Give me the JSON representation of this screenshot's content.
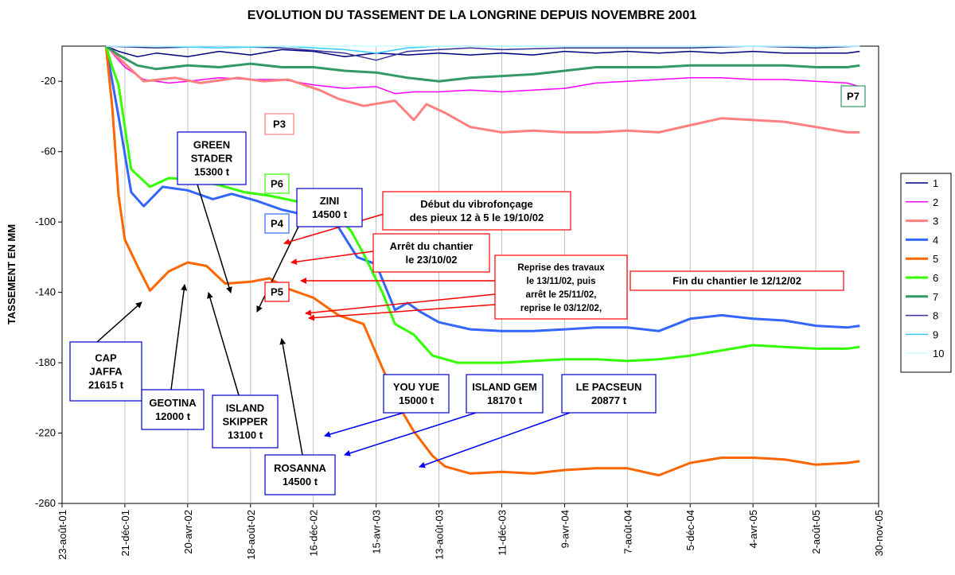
{
  "chart_data": {
    "type": "line",
    "title": "EVOLUTION DU TASSEMENT DE LA LONGRINE DEPUIS NOVEMBRE 2001",
    "ylabel": "TASSEMENT EN MM",
    "xlabel": "",
    "ylim": [
      -260,
      0
    ],
    "yticks": [
      -20,
      -60,
      -100,
      -140,
      -180,
      -220,
      -260
    ],
    "xticks": [
      "23-août-01",
      "21-déc-01",
      "20-avr-02",
      "18-août-02",
      "16-déc-02",
      "15-avr-03",
      "13-août-03",
      "11-déc-03",
      "9-avr-04",
      "7-août-04",
      "5-déc-04",
      "4-avr-05",
      "2-août-05",
      "30-nov-05"
    ],
    "grid": "vertical",
    "legend_position": "right",
    "series": [
      {
        "name": "1",
        "color": "#000080",
        "points": [
          [
            0.7,
            0
          ],
          [
            0.9,
            -3
          ],
          [
            1.2,
            -6
          ],
          [
            1.5,
            -4
          ],
          [
            2,
            -6
          ],
          [
            2.5,
            -3
          ],
          [
            3,
            -5
          ],
          [
            3.5,
            -2
          ],
          [
            4,
            -3
          ],
          [
            4.5,
            -6
          ],
          [
            5,
            -4
          ],
          [
            5.5,
            -5
          ],
          [
            6,
            -4
          ],
          [
            6.5,
            -5
          ],
          [
            7,
            -4
          ],
          [
            7.5,
            -5
          ],
          [
            8,
            -3
          ],
          [
            8.5,
            -4
          ],
          [
            9,
            -3
          ],
          [
            9.5,
            -4
          ],
          [
            10,
            -3
          ],
          [
            10.5,
            -4
          ],
          [
            11,
            -3
          ],
          [
            11.5,
            -4
          ],
          [
            12,
            -4
          ],
          [
            12.5,
            -4
          ],
          [
            12.7,
            -3
          ]
        ]
      },
      {
        "name": "2",
        "color": "#ff00ff",
        "points": [
          [
            0.7,
            0
          ],
          [
            1,
            -12
          ],
          [
            1.3,
            -19
          ],
          [
            1.7,
            -21
          ],
          [
            2,
            -20
          ],
          [
            2.5,
            -18
          ],
          [
            3,
            -19
          ],
          [
            3.5,
            -19
          ],
          [
            4,
            -22
          ],
          [
            4.5,
            -24
          ],
          [
            5,
            -23
          ],
          [
            5.3,
            -27
          ],
          [
            5.6,
            -26
          ],
          [
            6,
            -26
          ],
          [
            6.5,
            -25
          ],
          [
            7,
            -26
          ],
          [
            7.5,
            -25
          ],
          [
            8,
            -24
          ],
          [
            8.5,
            -21
          ],
          [
            9,
            -20
          ],
          [
            9.5,
            -19
          ],
          [
            10,
            -18
          ],
          [
            10.5,
            -18
          ],
          [
            11,
            -19
          ],
          [
            11.5,
            -19
          ],
          [
            12,
            -20
          ],
          [
            12.5,
            -21
          ],
          [
            12.7,
            -23
          ]
        ]
      },
      {
        "name": "3",
        "color": "#ff8080",
        "points": [
          [
            0.7,
            0
          ],
          [
            1,
            -10
          ],
          [
            1.3,
            -20
          ],
          [
            1.8,
            -18
          ],
          [
            2.2,
            -21
          ],
          [
            2.8,
            -18
          ],
          [
            3.2,
            -20
          ],
          [
            3.6,
            -19
          ],
          [
            4.1,
            -25
          ],
          [
            4.4,
            -30
          ],
          [
            4.8,
            -34
          ],
          [
            5.3,
            -31
          ],
          [
            5.6,
            -42
          ],
          [
            5.8,
            -33
          ],
          [
            6.1,
            -38
          ],
          [
            6.5,
            -46
          ],
          [
            7,
            -49
          ],
          [
            7.5,
            -48
          ],
          [
            8,
            -49
          ],
          [
            8.5,
            -49
          ],
          [
            9,
            -48
          ],
          [
            9.5,
            -49
          ],
          [
            10,
            -45
          ],
          [
            10.5,
            -41
          ],
          [
            11,
            -42
          ],
          [
            11.5,
            -43
          ],
          [
            12,
            -46
          ],
          [
            12.5,
            -49
          ],
          [
            12.7,
            -49
          ]
        ]
      },
      {
        "name": "4",
        "color": "#3366ff",
        "points": [
          [
            0.7,
            0
          ],
          [
            0.9,
            -40
          ],
          [
            1.1,
            -83
          ],
          [
            1.3,
            -91
          ],
          [
            1.6,
            -80
          ],
          [
            2,
            -82
          ],
          [
            2.4,
            -87
          ],
          [
            2.7,
            -84
          ],
          [
            3.1,
            -88
          ],
          [
            3.5,
            -93
          ],
          [
            4,
            -97
          ],
          [
            4.4,
            -103
          ],
          [
            4.7,
            -120
          ],
          [
            5,
            -124
          ],
          [
            5.3,
            -150
          ],
          [
            5.5,
            -146
          ],
          [
            5.7,
            -151
          ],
          [
            6,
            -157
          ],
          [
            6.5,
            -161
          ],
          [
            7,
            -162
          ],
          [
            7.5,
            -162
          ],
          [
            8,
            -161
          ],
          [
            8.5,
            -160
          ],
          [
            9,
            -160
          ],
          [
            9.5,
            -162
          ],
          [
            10,
            -155
          ],
          [
            10.5,
            -153
          ],
          [
            11,
            -155
          ],
          [
            11.5,
            -156
          ],
          [
            12,
            -159
          ],
          [
            12.5,
            -160
          ],
          [
            12.7,
            -159
          ]
        ]
      },
      {
        "name": "5",
        "color": "#ff6600",
        "points": [
          [
            0.7,
            0
          ],
          [
            0.8,
            -35
          ],
          [
            0.9,
            -85
          ],
          [
            1,
            -110
          ],
          [
            1.2,
            -125
          ],
          [
            1.4,
            -139
          ],
          [
            1.7,
            -128
          ],
          [
            2,
            -123
          ],
          [
            2.3,
            -125
          ],
          [
            2.6,
            -135
          ],
          [
            3,
            -134
          ],
          [
            3.3,
            -132
          ],
          [
            3.6,
            -138
          ],
          [
            4,
            -143
          ],
          [
            4.4,
            -153
          ],
          [
            4.8,
            -158
          ],
          [
            5.1,
            -183
          ],
          [
            5.4,
            -207
          ],
          [
            5.6,
            -219
          ],
          [
            5.9,
            -233
          ],
          [
            6.1,
            -239
          ],
          [
            6.5,
            -243
          ],
          [
            7,
            -242
          ],
          [
            7.5,
            -243
          ],
          [
            8,
            -241
          ],
          [
            8.5,
            -240
          ],
          [
            9,
            -240
          ],
          [
            9.5,
            -244
          ],
          [
            10,
            -237
          ],
          [
            10.5,
            -234
          ],
          [
            11,
            -234
          ],
          [
            11.5,
            -235
          ],
          [
            12,
            -238
          ],
          [
            12.5,
            -237
          ],
          [
            12.7,
            -236
          ]
        ]
      },
      {
        "name": "6",
        "color": "#33ff00",
        "points": [
          [
            0.7,
            0
          ],
          [
            0.8,
            -12
          ],
          [
            0.9,
            -22
          ],
          [
            1.1,
            -70
          ],
          [
            1.4,
            -80
          ],
          [
            1.7,
            -75
          ],
          [
            2.1,
            -76
          ],
          [
            2.5,
            -79
          ],
          [
            2.9,
            -83
          ],
          [
            3.3,
            -85
          ],
          [
            3.7,
            -88
          ],
          [
            4.1,
            -92
          ],
          [
            4.4,
            -97
          ],
          [
            4.6,
            -105
          ],
          [
            4.8,
            -118
          ],
          [
            5.1,
            -140
          ],
          [
            5.3,
            -158
          ],
          [
            5.6,
            -164
          ],
          [
            5.9,
            -176
          ],
          [
            6.3,
            -180
          ],
          [
            7,
            -180
          ],
          [
            7.5,
            -179
          ],
          [
            8,
            -178
          ],
          [
            8.5,
            -178
          ],
          [
            9,
            -179
          ],
          [
            9.5,
            -178
          ],
          [
            10,
            -176
          ],
          [
            10.5,
            -173
          ],
          [
            11,
            -170
          ],
          [
            11.5,
            -171
          ],
          [
            12,
            -172
          ],
          [
            12.5,
            -172
          ],
          [
            12.7,
            -171
          ]
        ]
      },
      {
        "name": "7",
        "color": "#339966",
        "points": [
          [
            0.7,
            0
          ],
          [
            0.9,
            -5
          ],
          [
            1.2,
            -11
          ],
          [
            1.5,
            -13
          ],
          [
            2,
            -11
          ],
          [
            2.5,
            -12
          ],
          [
            3,
            -10
          ],
          [
            3.5,
            -12
          ],
          [
            4,
            -12
          ],
          [
            4.5,
            -14
          ],
          [
            5,
            -15
          ],
          [
            5.5,
            -18
          ],
          [
            6,
            -20
          ],
          [
            6.5,
            -18
          ],
          [
            7,
            -17
          ],
          [
            7.5,
            -16
          ],
          [
            8,
            -14
          ],
          [
            8.5,
            -12
          ],
          [
            9,
            -12
          ],
          [
            9.5,
            -12
          ],
          [
            10,
            -11
          ],
          [
            10.5,
            -11
          ],
          [
            11,
            -11
          ],
          [
            11.5,
            -11
          ],
          [
            12,
            -12
          ],
          [
            12.5,
            -12
          ],
          [
            12.7,
            -11
          ]
        ]
      },
      {
        "name": "8",
        "color": "#333399",
        "points": [
          [
            0.7,
            0
          ],
          [
            1.5,
            -1
          ],
          [
            2.5,
            0
          ],
          [
            3.5,
            -1
          ],
          [
            4.5,
            -4
          ],
          [
            5,
            -8
          ],
          [
            5.5,
            -3
          ],
          [
            6,
            -2
          ],
          [
            6.5,
            -1
          ],
          [
            7,
            -2
          ],
          [
            8,
            -1
          ],
          [
            9,
            -1
          ],
          [
            10,
            -1
          ],
          [
            11,
            0
          ],
          [
            12,
            -1
          ],
          [
            12.7,
            0
          ]
        ]
      },
      {
        "name": "9",
        "color": "#33ccff",
        "points": [
          [
            0.7,
            0
          ],
          [
            1.5,
            0
          ],
          [
            2.5,
            -1
          ],
          [
            3.5,
            0
          ],
          [
            4.5,
            -2
          ],
          [
            5,
            -4
          ],
          [
            5.5,
            -1
          ],
          [
            6,
            0
          ],
          [
            7,
            0
          ],
          [
            8,
            0
          ],
          [
            9,
            0
          ],
          [
            10,
            0
          ],
          [
            11,
            0
          ],
          [
            12,
            0
          ],
          [
            12.7,
            0
          ]
        ]
      },
      {
        "name": "10",
        "color": "#ccffff",
        "points": [
          [
            0.7,
            0
          ],
          [
            12.7,
            0
          ]
        ]
      }
    ],
    "annotations": [
      {
        "lines": [
          "GREEN",
          "STADER",
          "15300 t"
        ],
        "border": "#0000cc"
      },
      {
        "lines": [
          "ZINI",
          "14500 t"
        ],
        "border": "#0000cc"
      },
      {
        "lines": [
          "CAP",
          "JAFFA",
          "21615 t"
        ],
        "border": "#0000cc"
      },
      {
        "lines": [
          "GEOTINA",
          "12000 t"
        ],
        "border": "#0000cc"
      },
      {
        "lines": [
          "ISLAND",
          "SKIPPER",
          "13100 t"
        ],
        "border": "#0000cc"
      },
      {
        "lines": [
          "ROSANNA",
          "14500 t"
        ],
        "border": "#0000cc"
      },
      {
        "lines": [
          "YOU YUE",
          "15000 t"
        ],
        "border": "#0000cc"
      },
      {
        "lines": [
          "ISLAND GEM",
          "18170 t"
        ],
        "border": "#0000cc"
      },
      {
        "lines": [
          "LE PACSEUN",
          "20877 t"
        ],
        "border": "#0000cc"
      },
      {
        "lines": [
          "Début du vibrofonçage",
          "des pieux 12 à 5 le 19/10/02"
        ],
        "border": "#ff0000"
      },
      {
        "lines": [
          "Arrêt du chantier",
          "le 23/10/02"
        ],
        "border": "#ff0000"
      },
      {
        "lines": [
          "Reprise des travaux",
          "le 13/11/02, puis",
          "arrêt le 25/11/02,",
          "reprise le 03/12/02,"
        ],
        "border": "#ff0000"
      },
      {
        "lines": [
          "Fin du chantier le 12/12/02"
        ],
        "border": "#ff0000"
      },
      {
        "lines": [
          "P3"
        ],
        "border": "#ff8080"
      },
      {
        "lines": [
          "P6"
        ],
        "border": "#33ff00"
      },
      {
        "lines": [
          "P4"
        ],
        "border": "#3366ff"
      },
      {
        "lines": [
          "P5"
        ],
        "border": "#ff0000"
      },
      {
        "lines": [
          "P7"
        ],
        "border": "#339966"
      }
    ]
  }
}
